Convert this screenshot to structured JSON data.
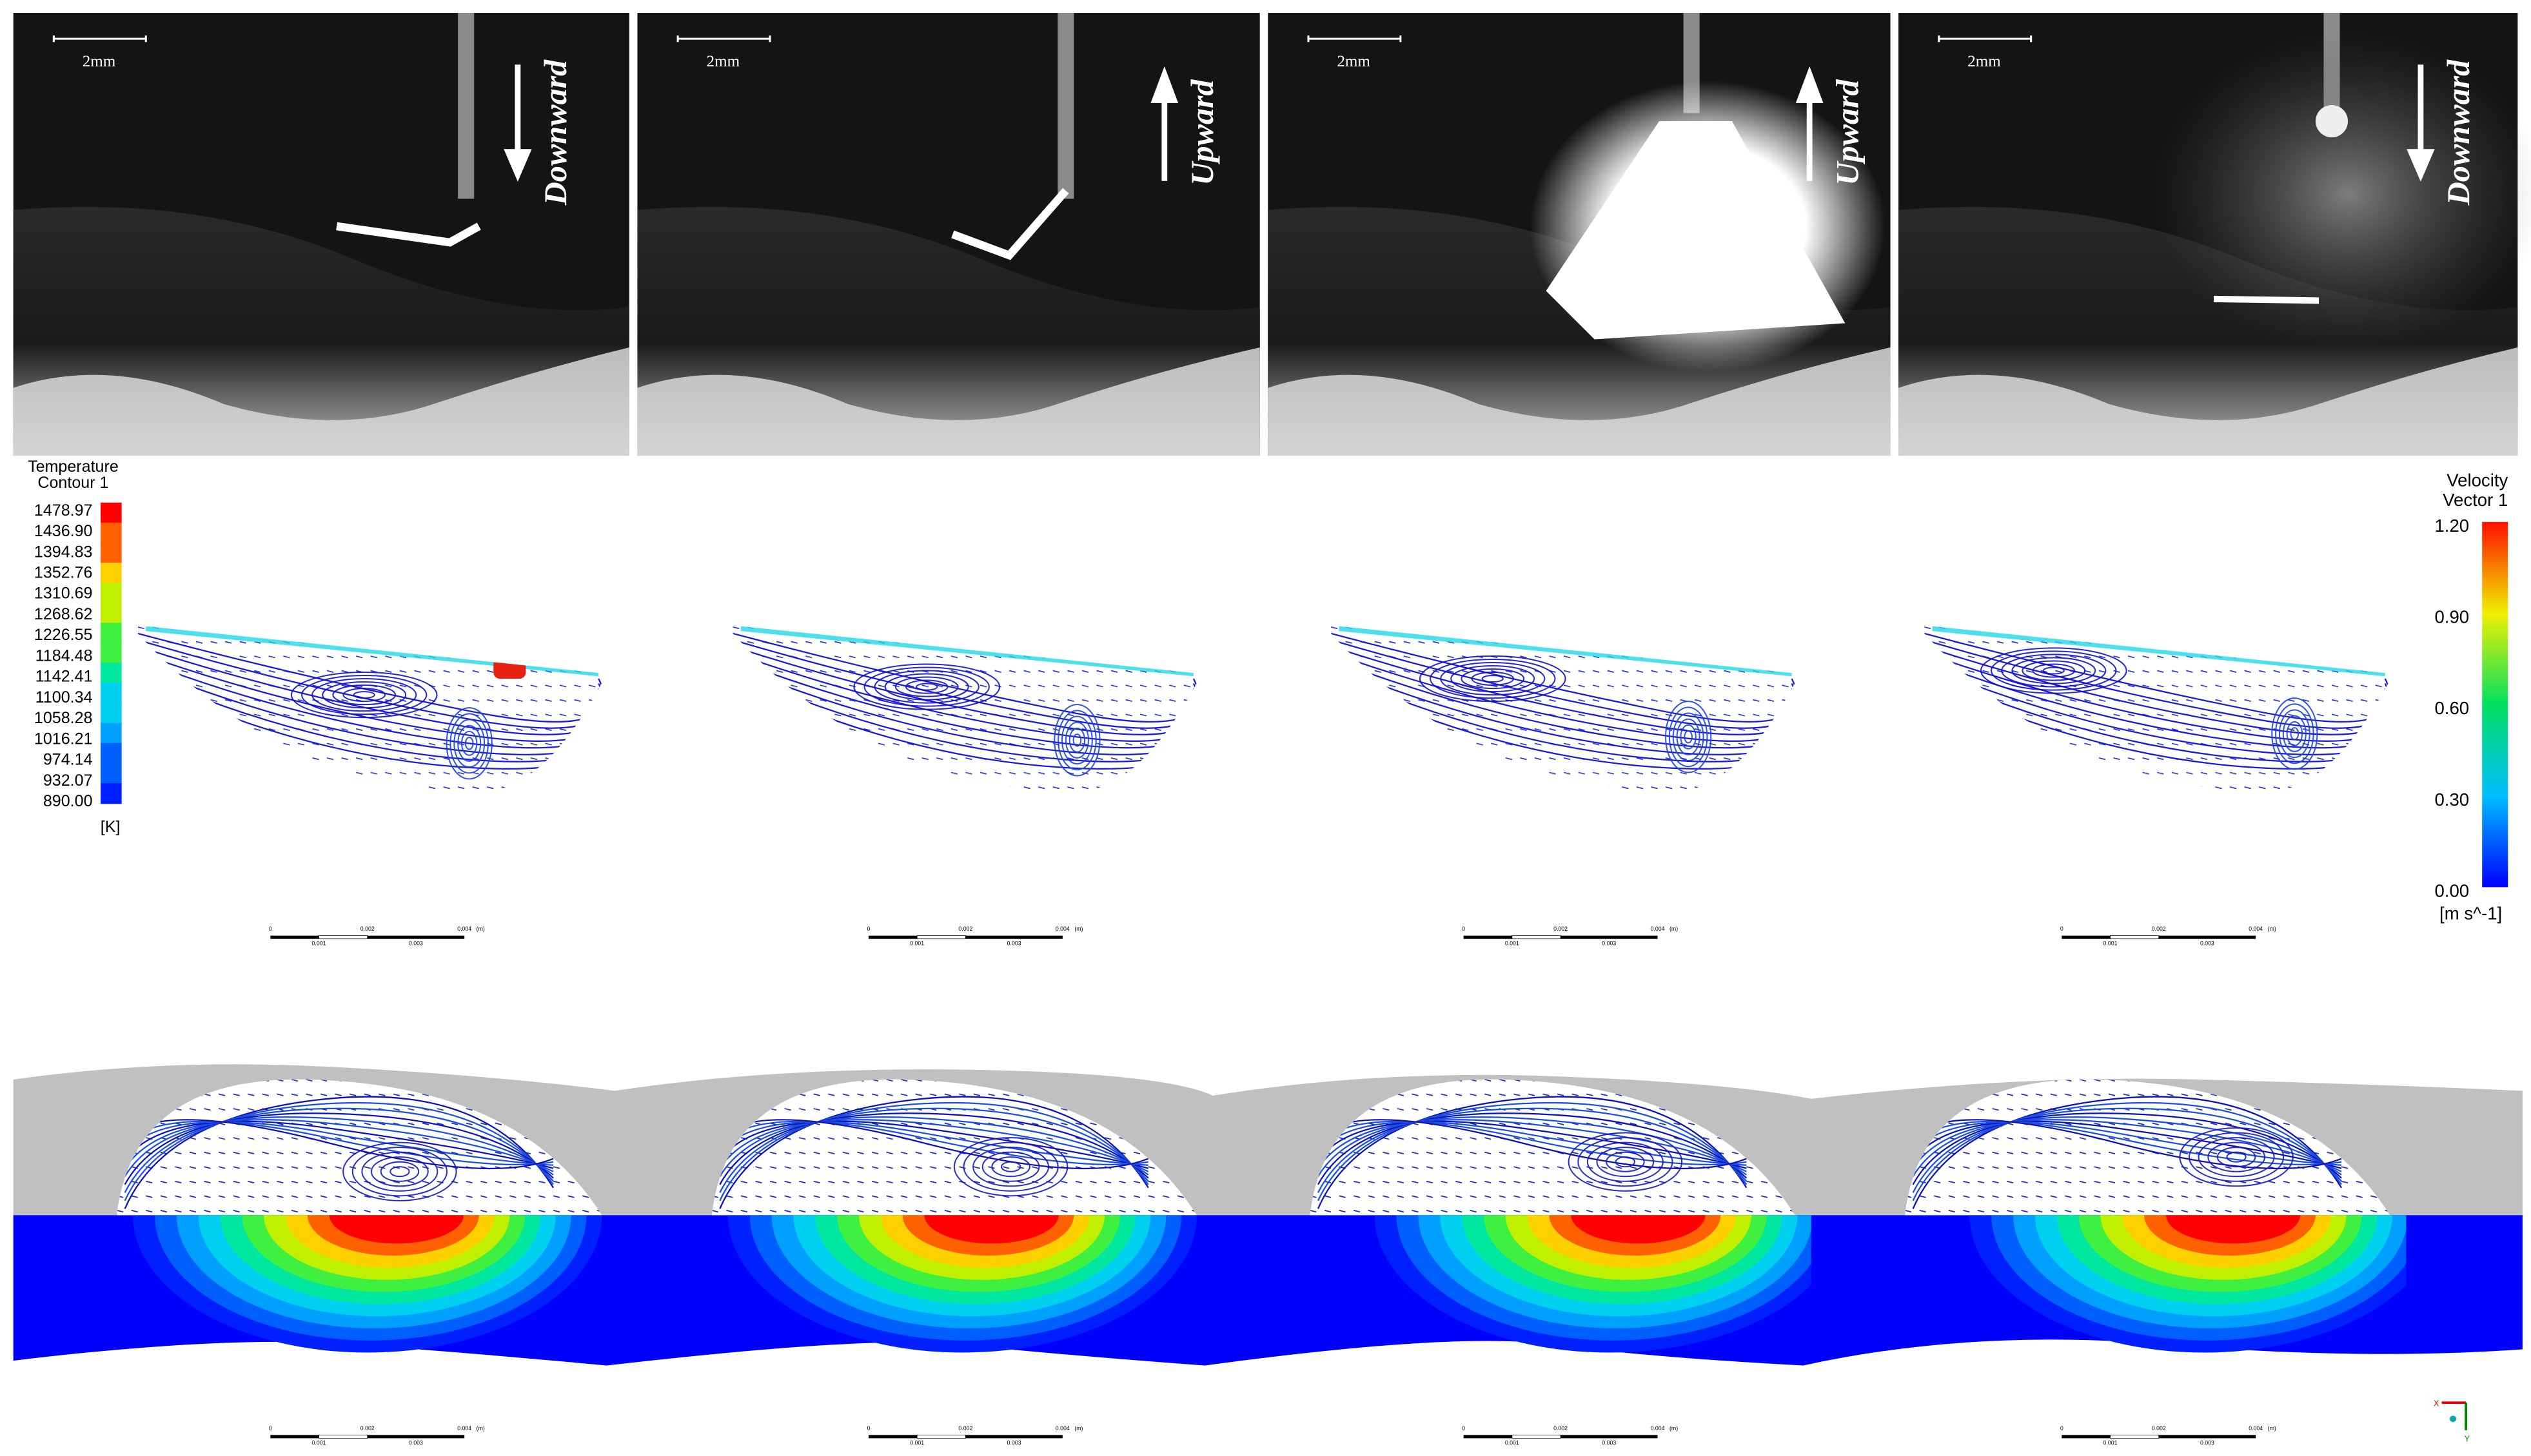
{
  "photos": [
    {
      "scale_label": "2mm",
      "direction": "Downward"
    },
    {
      "scale_label": "2mm",
      "direction": "Upward"
    },
    {
      "scale_label": "2mm",
      "direction": "Upward"
    },
    {
      "scale_label": "2mm",
      "direction": "Downward"
    }
  ],
  "temperature_legend": {
    "title": "Temperature",
    "subtitle": "Contour 1",
    "ticks": [
      "1478.97",
      "1436.90",
      "1394.83",
      "1352.76",
      "1310.69",
      "1268.62",
      "1226.55",
      "1184.48",
      "1142.41",
      "1100.34",
      "1058.28",
      "1016.21",
      "974.14",
      "932.07",
      "890.00"
    ],
    "unit": "[K]"
  },
  "velocity_legend": {
    "title": "Velocity",
    "subtitle": "Vector 1",
    "ticks": [
      "1.20",
      "0.90",
      "0.60",
      "0.30",
      "0.00"
    ],
    "unit": "[m s^-1]"
  },
  "scale_bars": [
    {
      "labels": [
        "0",
        "0.002",
        "0.004",
        "(m)",
        "0.001",
        "0.003"
      ]
    },
    {
      "labels": [
        "0",
        "0.002",
        "0.004",
        "(m)",
        "0.001",
        "0.003"
      ]
    },
    {
      "labels": [
        "0",
        "0.002",
        "0.004",
        "(m)",
        "0.001",
        "0.003"
      ]
    },
    {
      "labels": [
        "0",
        "0.002",
        "0.004",
        "(m)",
        "0.001",
        "0.003"
      ]
    },
    {
      "labels": [
        "0",
        "0.002",
        "0.004",
        "(m)",
        "0.001",
        "0.003"
      ]
    },
    {
      "labels": [
        "0",
        "0.002",
        "0.004",
        "(m)",
        "0.001",
        "0.003"
      ]
    },
    {
      "labels": [
        "0",
        "0.002",
        "0.004",
        "(m)",
        "0.001",
        "0.003"
      ]
    },
    {
      "labels": [
        "0",
        "0.002",
        "0.004",
        "(m)",
        "0.001",
        "0.003"
      ]
    }
  ],
  "axis_triad": {
    "x": "X",
    "y": "Y"
  }
}
